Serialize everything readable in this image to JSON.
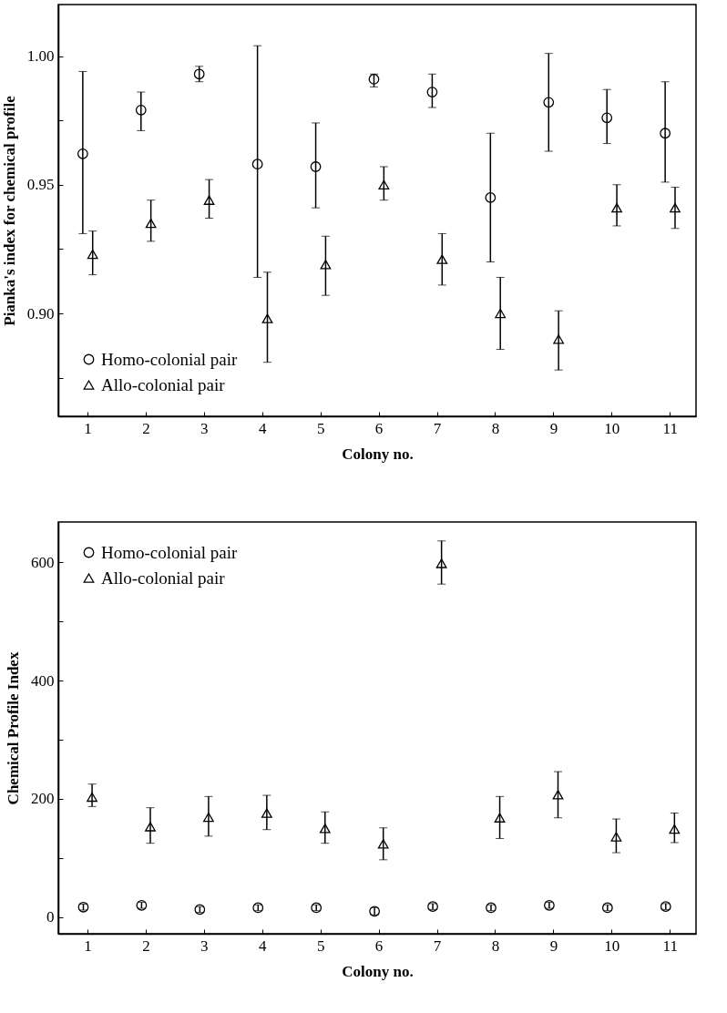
{
  "chart_data": [
    {
      "type": "scatter",
      "xlabel": "Colony no.",
      "ylabel": "Pianka's index for chemical profile",
      "xlim": [
        0.5,
        11.45
      ],
      "xticks": [
        1,
        2,
        3,
        4,
        5,
        6,
        7,
        8,
        9,
        10,
        11
      ],
      "ylim": [
        0.86,
        1.02
      ],
      "yticks": [
        {
          "value": 0.875,
          "label": null
        },
        {
          "value": 0.9,
          "label": "0.90"
        },
        {
          "value": 0.925,
          "label": null
        },
        0.95,
        {
          "value": 0.975,
          "label": null
        },
        {
          "value": 1,
          "label": "1.00"
        }
      ],
      "grid": false,
      "legend": "bottom left",
      "series": [
        {
          "name": "Homo-colonial pair",
          "color": "#000000",
          "marker": "circle",
          "x": [
            0.92,
            1.92,
            2.92,
            3.92,
            4.92,
            5.92,
            6.92,
            7.92,
            8.92,
            9.92,
            10.92
          ],
          "values": [
            0.962,
            0.979,
            0.993,
            0.958,
            0.957,
            0.991,
            0.986,
            0.945,
            0.982,
            0.976,
            0.97
          ],
          "errors": [
            [
              0.931,
              0.994
            ],
            [
              0.971,
              0.986
            ],
            [
              0.99,
              0.996
            ],
            [
              0.914,
              1.004
            ],
            [
              0.941,
              0.974
            ],
            [
              0.988,
              0.993
            ],
            [
              0.98,
              0.993
            ],
            [
              0.92,
              0.97
            ],
            [
              0.963,
              1.001
            ],
            [
              0.966,
              0.987
            ],
            [
              0.951,
              0.99
            ]
          ]
        },
        {
          "name": "Allo-colonial pair",
          "color": "#000000",
          "marker": "triangle",
          "x": [
            1.09,
            2.09,
            3.09,
            4.09,
            5.09,
            6.09,
            7.09,
            8.09,
            9.09,
            10.09,
            11.09
          ],
          "values": [
            0.923,
            0.935,
            0.944,
            0.898,
            0.919,
            0.95,
            0.921,
            0.9,
            0.89,
            0.941,
            0.941
          ],
          "errors": [
            [
              0.915,
              0.932
            ],
            [
              0.928,
              0.944
            ],
            [
              0.937,
              0.952
            ],
            [
              0.881,
              0.916
            ],
            [
              0.907,
              0.93
            ],
            [
              0.944,
              0.957
            ],
            [
              0.911,
              0.931
            ],
            [
              0.886,
              0.914
            ],
            [
              0.878,
              0.901
            ],
            [
              0.934,
              0.95
            ],
            [
              0.933,
              0.949
            ]
          ]
        }
      ]
    },
    {
      "type": "scatter",
      "xlabel": "Colony no.",
      "ylabel": "Chemical Profile Index",
      "xlim": [
        0.5,
        11.45
      ],
      "xticks": [
        1,
        2,
        3,
        4,
        5,
        6,
        7,
        8,
        9,
        10,
        11
      ],
      "ylim": [
        -28,
        668
      ],
      "yticks": [
        0,
        {
          "value": 100,
          "label": null
        },
        200,
        {
          "value": 300,
          "label": null
        },
        400,
        {
          "value": 500,
          "label": null
        },
        600
      ],
      "grid": false,
      "legend": "top left",
      "series": [
        {
          "name": "Homo-colonial pair",
          "color": "#000000",
          "marker": "circle",
          "x": [
            0.93,
            1.93,
            2.93,
            3.93,
            4.93,
            5.93,
            6.93,
            7.93,
            8.93,
            9.93,
            10.93
          ],
          "values": [
            17,
            20,
            13,
            16,
            16,
            10,
            18,
            16,
            20,
            16,
            18
          ],
          "errors": [
            5,
            5,
            5,
            5,
            5,
            6,
            5,
            5,
            5,
            5,
            5
          ]
        },
        {
          "name": "Allo-colonial pair",
          "color": "#000000",
          "marker": "triangle",
          "x": [
            1.08,
            2.08,
            3.08,
            4.08,
            5.08,
            6.08,
            7.08,
            8.08,
            9.08,
            10.08,
            11.08
          ],
          "values": [
            203,
            153,
            169,
            176,
            150,
            124,
            598,
            168,
            207,
            136,
            149
          ],
          "errors": [
            [
              187,
              225
            ],
            [
              125,
              185
            ],
            [
              137,
              204
            ],
            [
              148,
              206
            ],
            [
              125,
              178
            ],
            [
              97,
              151
            ],
            [
              563,
              636
            ],
            [
              133,
              204
            ],
            [
              168,
              246
            ],
            [
              109,
              166
            ],
            [
              126,
              176
            ]
          ]
        }
      ]
    }
  ]
}
